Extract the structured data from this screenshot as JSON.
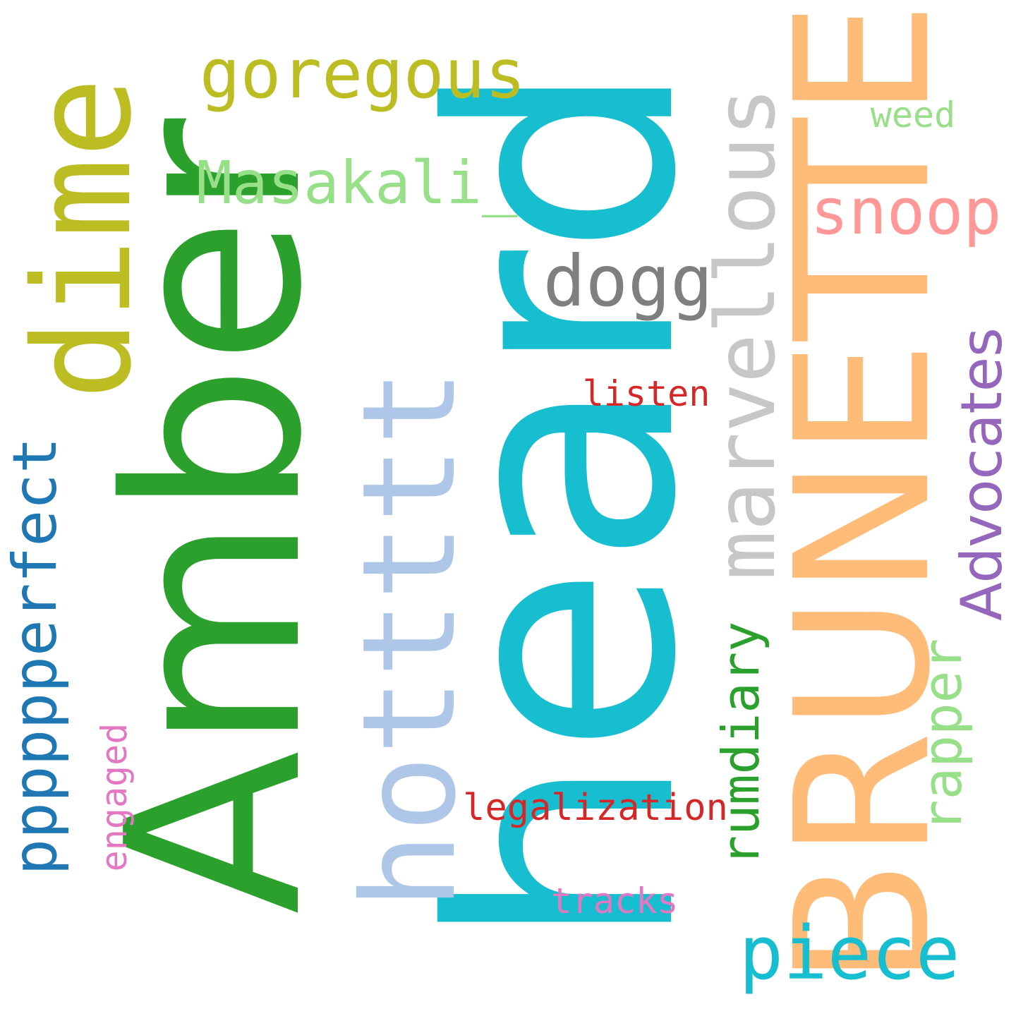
{
  "word_cloud": {
    "words": [
      {
        "id": "amber",
        "text": "Amber",
        "color": "#2ca02c",
        "orientation": "vertical"
      },
      {
        "id": "heard",
        "text": "heard",
        "color": "#17becf",
        "orientation": "vertical"
      },
      {
        "id": "brunette",
        "text": "BRUNETTE",
        "color": "#ffbb78",
        "orientation": "vertical"
      },
      {
        "id": "dime",
        "text": "dime",
        "color": "#bcbd22",
        "orientation": "vertical"
      },
      {
        "id": "hotttt",
        "text": "hottttt",
        "color": "#aec7e8",
        "orientation": "vertical"
      },
      {
        "id": "marvellous",
        "text": "marvellous",
        "color": "#c7c7c7",
        "orientation": "vertical"
      },
      {
        "id": "goregous",
        "text": "goregous",
        "color": "#bcbd22",
        "orientation": "horizontal"
      },
      {
        "id": "masakali",
        "text": "Masakali_",
        "color": "#98df8a",
        "orientation": "horizontal"
      },
      {
        "id": "dogg",
        "text": "dogg",
        "color": "#7f7f7f",
        "orientation": "horizontal"
      },
      {
        "id": "snoop",
        "text": "snoop",
        "color": "#ff9896",
        "orientation": "horizontal"
      },
      {
        "id": "weed",
        "text": "weed",
        "color": "#98df8a",
        "orientation": "horizontal"
      },
      {
        "id": "listen",
        "text": "listen",
        "color": "#d62728",
        "orientation": "horizontal"
      },
      {
        "id": "advocates",
        "text": "Advocates",
        "color": "#9467bd",
        "orientation": "vertical"
      },
      {
        "id": "ppppp",
        "text": "pppppperfect",
        "color": "#1f77b4",
        "orientation": "vertical"
      },
      {
        "id": "rumdiary",
        "text": "rumdiary",
        "color": "#2ca02c",
        "orientation": "vertical"
      },
      {
        "id": "rapper",
        "text": "rapper",
        "color": "#98df8a",
        "orientation": "vertical"
      },
      {
        "id": "engaged",
        "text": "engaged",
        "color": "#e377c2",
        "orientation": "vertical"
      },
      {
        "id": "legal",
        "text": "legalization",
        "color": "#d62728",
        "orientation": "horizontal"
      },
      {
        "id": "tracks",
        "text": "tracks",
        "color": "#e377c2",
        "orientation": "horizontal"
      },
      {
        "id": "piece",
        "text": "piece",
        "color": "#17becf",
        "orientation": "horizontal"
      }
    ]
  }
}
